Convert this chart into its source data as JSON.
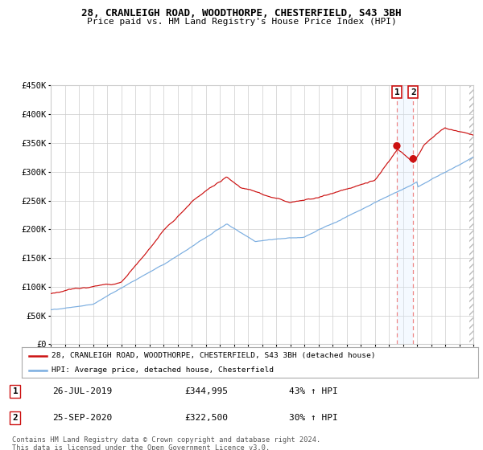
{
  "title1": "28, CRANLEIGH ROAD, WOODTHORPE, CHESTERFIELD, S43 3BH",
  "title2": "Price paid vs. HM Land Registry's House Price Index (HPI)",
  "legend_line1": "28, CRANLEIGH ROAD, WOODTHORPE, CHESTERFIELD, S43 3BH (detached house)",
  "legend_line2": "HPI: Average price, detached house, Chesterfield",
  "table_rows": [
    {
      "num": "1",
      "date": "26-JUL-2019",
      "price": "£344,995",
      "change": "43% ↑ HPI"
    },
    {
      "num": "2",
      "date": "25-SEP-2020",
      "price": "£322,500",
      "change": "30% ↑ HPI"
    }
  ],
  "footnote1": "Contains HM Land Registry data © Crown copyright and database right 2024.",
  "footnote2": "This data is licensed under the Open Government Licence v3.0.",
  "hpi_color": "#7aade0",
  "price_color": "#cc1111",
  "dot_color": "#cc1111",
  "vline_color": "#ee8888",
  "shade_color": "#ddeeff",
  "grid_color": "#cccccc",
  "background_color": "#ffffff",
  "ylim_min": 0,
  "ylim_max": 450000,
  "yticks": [
    0,
    50000,
    100000,
    150000,
    200000,
    250000,
    300000,
    350000,
    400000,
    450000
  ],
  "ytick_labels": [
    "£0",
    "£50K",
    "£100K",
    "£150K",
    "£200K",
    "£250K",
    "£300K",
    "£350K",
    "£400K",
    "£450K"
  ],
  "year_start": 1995,
  "year_end": 2025,
  "sale1_year": 2019.57,
  "sale1_price": 344995,
  "sale2_year": 2020.73,
  "sale2_price": 322500
}
